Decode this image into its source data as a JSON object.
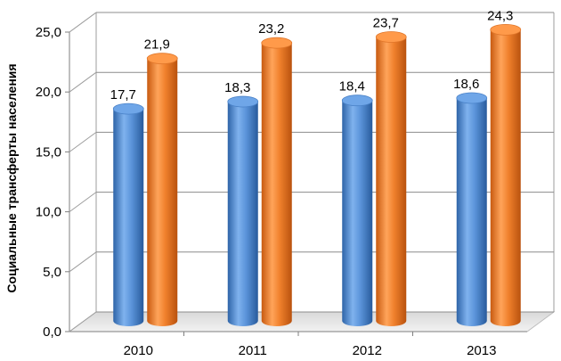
{
  "chart_data": {
    "type": "bar",
    "title": "",
    "xlabel": "",
    "ylabel": "Социальные трансферты населения",
    "categories": [
      "2010",
      "2011",
      "2012",
      "2013"
    ],
    "series": [
      {
        "values": [
          17.7,
          18.3,
          18.4,
          18.6
        ],
        "labels": [
          "17,7",
          "18,3",
          "18,4",
          "18,6"
        ],
        "color": "#4F8CD6"
      },
      {
        "values": [
          21.9,
          23.2,
          23.7,
          24.3
        ],
        "labels": [
          "21,9",
          "23,2",
          "23,7",
          "24,3"
        ],
        "color": "#F07F2A"
      }
    ],
    "ylim": [
      0,
      25
    ],
    "yticks": [
      {
        "value": 0,
        "label": "0,0"
      },
      {
        "value": 5,
        "label": "5,0"
      },
      {
        "value": 10,
        "label": "10,0"
      },
      {
        "value": 15,
        "label": "15,0"
      },
      {
        "value": 20,
        "label": "20,0"
      },
      {
        "value": 25,
        "label": "25,0"
      }
    ],
    "grid": true,
    "legend": "none",
    "style": "3d-cylinder"
  }
}
